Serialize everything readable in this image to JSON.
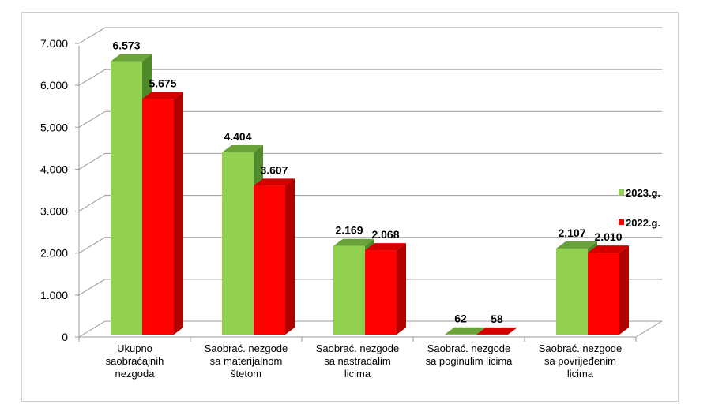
{
  "chart_data": {
    "type": "bar",
    "style": "3d-clustered",
    "categories": [
      [
        "Ukupno",
        "saobraćajnih",
        "nezgoda"
      ],
      [
        "Saobrać. nezgode",
        "sa materijalnom",
        "štetom"
      ],
      [
        "Saobrać. nezgode",
        "sa nastradalim",
        "licima"
      ],
      [
        "Saobrać. nezgode",
        "sa poginulim licima"
      ],
      [
        "Saobrać. nezgode",
        "sa povrijeđenim",
        "licima"
      ]
    ],
    "series": [
      {
        "name": "2023.g.",
        "values": [
          6573,
          4404,
          2169,
          62,
          2107
        ],
        "labels": [
          "6.573",
          "4.404",
          "2.169",
          "62",
          "2.107"
        ],
        "color": "#92d050",
        "side": "#4f8a2a",
        "top": "#6aa33a"
      },
      {
        "name": "2022.g.",
        "values": [
          5675,
          3607,
          2068,
          58,
          2010
        ],
        "labels": [
          "5.675",
          "3.607",
          "2.068",
          "58",
          "2.010"
        ],
        "color": "#ff0000",
        "side": "#b00000",
        "top": "#d40000"
      }
    ],
    "ylim": [
      0,
      7000
    ],
    "yticks": [
      0,
      1000,
      2000,
      3000,
      4000,
      5000,
      6000,
      7000
    ],
    "ytick_labels": [
      "0",
      "1.000",
      "2.000",
      "3.000",
      "4.000",
      "5.000",
      "6.000",
      "7.000"
    ],
    "grid": true,
    "legend": "right"
  }
}
